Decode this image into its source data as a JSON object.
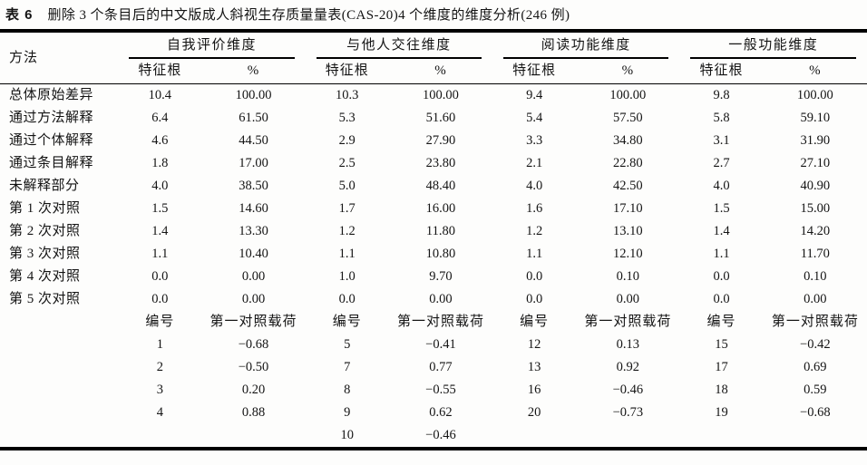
{
  "title": {
    "label": "表 6",
    "text": "删除 3 个条目后的中文版成人斜视生存质量量表(CAS-20)4 个维度的维度分析(246 例)"
  },
  "table": {
    "method_header": "方法",
    "groups": [
      {
        "name": "自我评价维度",
        "eig_header": "特征根",
        "pct_header": "%"
      },
      {
        "name": "与他人交往维度",
        "eig_header": "特征根",
        "pct_header": "%"
      },
      {
        "name": "阅读功能维度",
        "eig_header": "特征根",
        "pct_header": "%"
      },
      {
        "name": "一般功能维度",
        "eig_header": "特征根",
        "pct_header": "%"
      }
    ],
    "rows": [
      {
        "label": "总体原始差异",
        "values": [
          "10.4",
          "100.00",
          "10.3",
          "100.00",
          "9.4",
          "100.00",
          "9.8",
          "100.00"
        ]
      },
      {
        "label": "通过方法解释",
        "values": [
          "6.4",
          "61.50",
          "5.3",
          "51.60",
          "5.4",
          "57.50",
          "5.8",
          "59.10"
        ]
      },
      {
        "label": "通过个体解释",
        "values": [
          "4.6",
          "44.50",
          "2.9",
          "27.90",
          "3.3",
          "34.80",
          "3.1",
          "31.90"
        ]
      },
      {
        "label": "通过条目解释",
        "values": [
          "1.8",
          "17.00",
          "2.5",
          "23.80",
          "2.1",
          "22.80",
          "2.7",
          "27.10"
        ]
      },
      {
        "label": "未解释部分",
        "values": [
          "4.0",
          "38.50",
          "5.0",
          "48.40",
          "4.0",
          "42.50",
          "4.0",
          "40.90"
        ]
      },
      {
        "label": "第 1 次对照",
        "values": [
          "1.5",
          "14.60",
          "1.7",
          "16.00",
          "1.6",
          "17.10",
          "1.5",
          "15.00"
        ]
      },
      {
        "label": "第 2 次对照",
        "values": [
          "1.4",
          "13.30",
          "1.2",
          "11.80",
          "1.2",
          "13.10",
          "1.4",
          "14.20"
        ]
      },
      {
        "label": "第 3 次对照",
        "values": [
          "1.1",
          "10.40",
          "1.1",
          "10.80",
          "1.1",
          "12.10",
          "1.1",
          "11.70"
        ]
      },
      {
        "label": "第 4 次对照",
        "values": [
          "0.0",
          "0.00",
          "1.0",
          "9.70",
          "0.0",
          "0.10",
          "0.0",
          "0.10"
        ]
      },
      {
        "label": "第 5 次对照",
        "values": [
          "0.0",
          "0.00",
          "0.0",
          "0.00",
          "0.0",
          "0.00",
          "0.0",
          "0.00"
        ]
      }
    ],
    "loading_header": {
      "id": "编号",
      "loading": "第一对照载荷"
    },
    "loading_rows": [
      [
        "1",
        "−0.68",
        "5",
        "−0.41",
        "12",
        "0.13",
        "15",
        "−0.42"
      ],
      [
        "2",
        "−0.50",
        "7",
        "0.77",
        "13",
        "0.92",
        "17",
        "0.69"
      ],
      [
        "3",
        "0.20",
        "8",
        "−0.55",
        "16",
        "−0.46",
        "18",
        "0.59"
      ],
      [
        "4",
        "0.88",
        "9",
        "0.62",
        "20",
        "−0.73",
        "19",
        "−0.68"
      ],
      [
        "",
        "",
        "10",
        "−0.46",
        "",
        "",
        "",
        ""
      ]
    ]
  }
}
